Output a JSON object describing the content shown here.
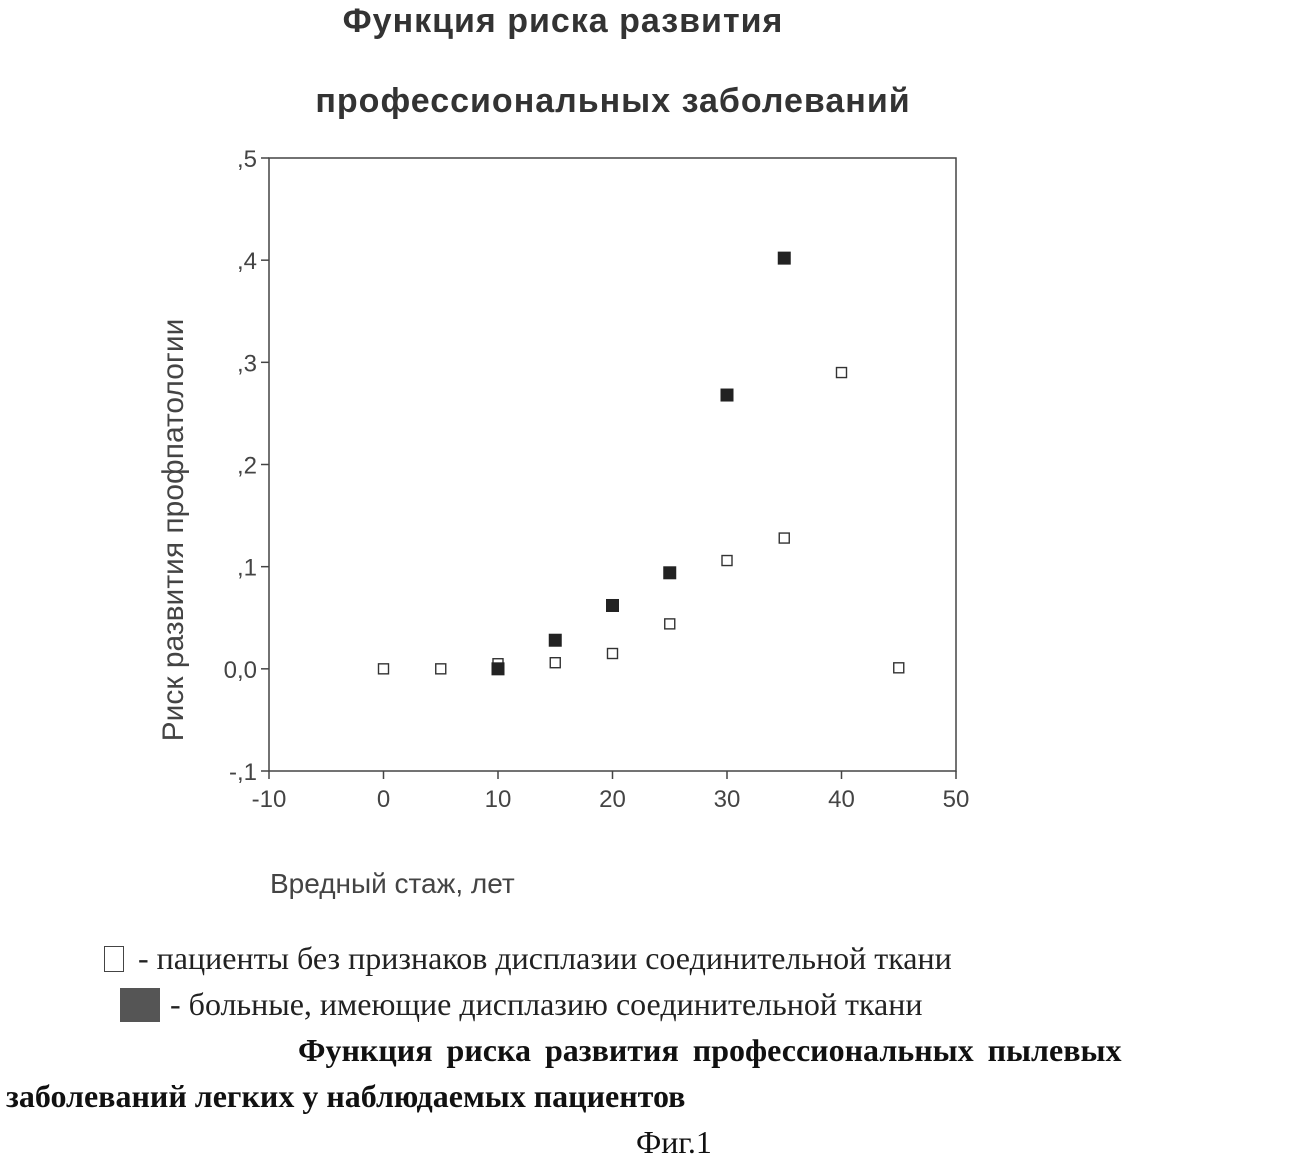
{
  "chart_data": {
    "type": "scatter",
    "title": "Функция риска развития",
    "subtitle": "профессиональных заболеваний",
    "xlabel": "Вредный стаж, лет",
    "ylabel": "Риск развития профпатологии",
    "xlim": [
      -10,
      50
    ],
    "ylim": [
      -0.1,
      0.5
    ],
    "x_ticks": [
      "-10",
      "0",
      "10",
      "20",
      "30",
      "40",
      "50"
    ],
    "x_tick_values": [
      -10,
      0,
      10,
      20,
      30,
      40,
      50
    ],
    "y_ticks": [
      ",5",
      ",4",
      ",3",
      ",2",
      ",1",
      "0,0",
      "-,1"
    ],
    "y_tick_values": [
      0.5,
      0.4,
      0.3,
      0.2,
      0.1,
      0.0,
      -0.1
    ],
    "grid": false,
    "series": [
      {
        "name": "пациенты без признаков дисплазии соединительной ткани",
        "marker": "open-square",
        "color": "#333333",
        "x": [
          0,
          5,
          10,
          15,
          20,
          25,
          30,
          35,
          40,
          45
        ],
        "y": [
          0.0,
          0.0,
          0.005,
          0.006,
          0.015,
          0.044,
          0.106,
          0.128,
          0.29,
          0.001
        ]
      },
      {
        "name": "больные, имеющие дисплазию соединительной ткани",
        "marker": "filled-square",
        "color": "#222222",
        "x": [
          10,
          15,
          20,
          25,
          30,
          35
        ],
        "y": [
          0.0,
          0.028,
          0.062,
          0.094,
          0.268,
          0.402
        ]
      }
    ]
  },
  "legend": {
    "open_label": "- пациенты без признаков дисплазии соединительной ткани",
    "filled_label": "- больные, имеющие дисплазию соединительной ткани"
  },
  "caption": {
    "line1": "Функция риска развития  профессиональных пылевых",
    "line2": "заболеваний легких у наблюдаемых  пациентов"
  },
  "figure_label": "Фиг.1"
}
